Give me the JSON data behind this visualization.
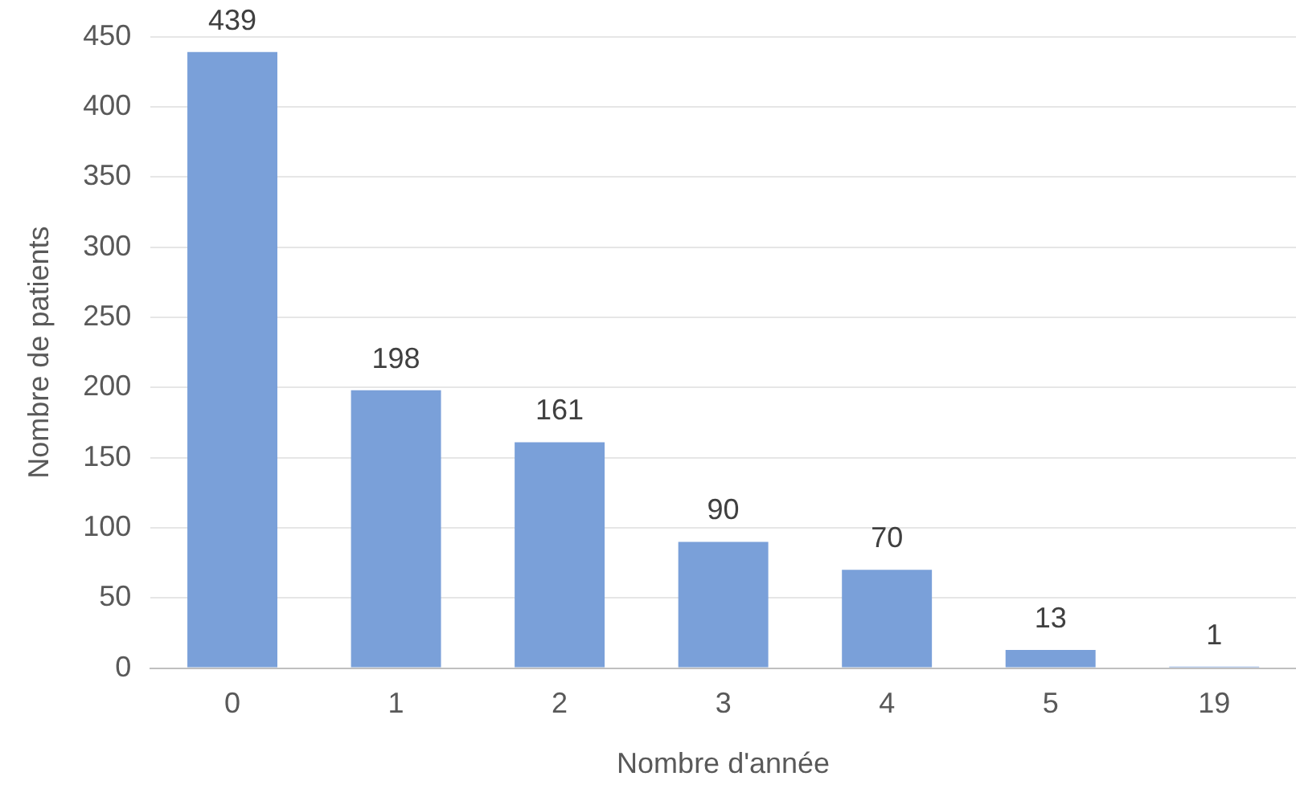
{
  "chart_data": {
    "type": "bar",
    "xlabel": "Nombre d'année",
    "ylabel": "Nombre de patients",
    "categories": [
      "0",
      "1",
      "2",
      "3",
      "4",
      "5",
      "19"
    ],
    "values": [
      439,
      198,
      161,
      90,
      70,
      13,
      1
    ],
    "color": "#7aa0d9",
    "ylim": [
      0,
      450
    ],
    "yticks": [
      0,
      50,
      100,
      150,
      200,
      250,
      300,
      350,
      400,
      450
    ],
    "grid": "y",
    "data_labels": true,
    "legend": false
  }
}
